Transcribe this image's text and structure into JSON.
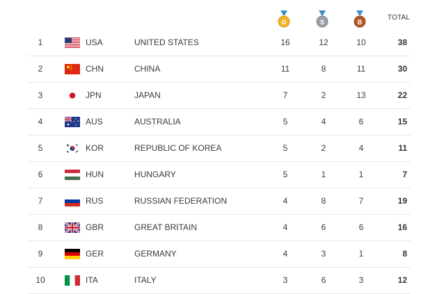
{
  "header": {
    "gold_letter": "G",
    "silver_letter": "S",
    "bronze_letter": "B",
    "total_label": "TOTAL"
  },
  "colors": {
    "gold": "#f2b226",
    "silver": "#9aa0a6",
    "bronze": "#b35a2b"
  },
  "rows": [
    {
      "rank": "1",
      "code": "USA",
      "country": "UNITED STATES",
      "flag": "usa-flag-icon",
      "gold": "16",
      "silver": "12",
      "bronze": "10",
      "total": "38"
    },
    {
      "rank": "2",
      "code": "CHN",
      "country": "CHINA",
      "flag": "china-flag-icon",
      "gold": "11",
      "silver": "8",
      "bronze": "11",
      "total": "30"
    },
    {
      "rank": "3",
      "code": "JPN",
      "country": "JAPAN",
      "flag": "japan-flag-icon",
      "gold": "7",
      "silver": "2",
      "bronze": "13",
      "total": "22"
    },
    {
      "rank": "4",
      "code": "AUS",
      "country": "AUSTRALIA",
      "flag": "australia-flag-icon",
      "gold": "5",
      "silver": "4",
      "bronze": "6",
      "total": "15"
    },
    {
      "rank": "5",
      "code": "KOR",
      "country": "REPUBLIC OF KOREA",
      "flag": "korea-flag-icon",
      "gold": "5",
      "silver": "2",
      "bronze": "4",
      "total": "11"
    },
    {
      "rank": "6",
      "code": "HUN",
      "country": "HUNGARY",
      "flag": "hungary-flag-icon",
      "gold": "5",
      "silver": "1",
      "bronze": "1",
      "total": "7"
    },
    {
      "rank": "7",
      "code": "RUS",
      "country": "RUSSIAN FEDERATION",
      "flag": "russia-flag-icon",
      "gold": "4",
      "silver": "8",
      "bronze": "7",
      "total": "19"
    },
    {
      "rank": "8",
      "code": "GBR",
      "country": "GREAT BRITAIN",
      "flag": "uk-flag-icon",
      "gold": "4",
      "silver": "6",
      "bronze": "6",
      "total": "16"
    },
    {
      "rank": "9",
      "code": "GER",
      "country": "GERMANY",
      "flag": "germany-flag-icon",
      "gold": "4",
      "silver": "3",
      "bronze": "1",
      "total": "8"
    },
    {
      "rank": "10",
      "code": "ITA",
      "country": "ITALY",
      "flag": "italy-flag-icon",
      "gold": "3",
      "silver": "6",
      "bronze": "3",
      "total": "12"
    }
  ]
}
